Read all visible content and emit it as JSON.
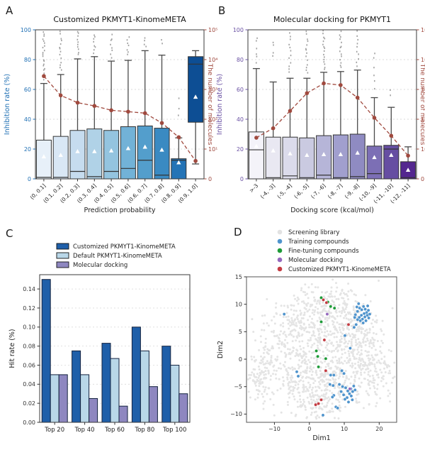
{
  "colors": {
    "background": "#ffffff",
    "count_line": "#a0493e",
    "axis_blue": "#2171b5",
    "axis_purple": "#6a51a3",
    "grid": "#cfcfcf",
    "spine": "#3a3a3a",
    "whisker": "#4a4a4a",
    "outlier_dot": "#8a8a8a",
    "mean_marker": "#ffffff"
  },
  "chart_data": [
    {
      "panel": "A",
      "type": "boxplot-with-count-line",
      "title": "Customized PKMYT1-KinomeMETA",
      "xlabel": "Prediction probability",
      "ylabel_left": "Inhibition rate (%)",
      "ylabel_right": "The number of molecules",
      "left_axis_color": "#2171b5",
      "right_axis_color": "#a0493e",
      "ylim_left": [
        0,
        100
      ],
      "yticks_left": [
        0,
        20,
        40,
        60,
        80,
        100
      ],
      "yticks_right_labels": [
        "0",
        "10¹",
        "10²",
        "10³",
        "10⁴",
        "10⁵"
      ],
      "categories": [
        "(0, 0.1]",
        "(0.1, 0.2]",
        "(0.2, 0.3]",
        "(0.3, 0.4]",
        "(0.4, 0.5]",
        "(0.5, 0.6]",
        "(0.6, 0.7]",
        "(0.7, 0.8]",
        "(0.8, 0.9]",
        "(0.9, 1.0]"
      ],
      "bin_fills": [
        "#e7f0f9",
        "#d9e7f5",
        "#c6dcef",
        "#b0d2e7",
        "#94c4df",
        "#72b2d7",
        "#539ecc",
        "#3a8ac2",
        "#2474b6",
        "#0d4e94"
      ],
      "boxes": [
        {
          "q1": 0,
          "q3": 26,
          "median": 1,
          "mean": 15,
          "whisker_hi": 64,
          "whisker_lo": 0,
          "outliers": {
            "min": 66,
            "max": 100,
            "n": 22
          }
        },
        {
          "q1": 0,
          "q3": 28.5,
          "median": 1,
          "mean": 16,
          "whisker_hi": 70,
          "whisker_lo": 0,
          "outliers": {
            "min": 72,
            "max": 100,
            "n": 14
          }
        },
        {
          "q1": 0,
          "q3": 32.5,
          "median": 5,
          "mean": 18.5,
          "whisker_hi": 80.5,
          "whisker_lo": 0,
          "outliers": {
            "min": 83,
            "max": 100,
            "n": 10
          }
        },
        {
          "q1": 0,
          "q3": 33.5,
          "median": 1.5,
          "mean": 18.5,
          "whisker_hi": 82,
          "whisker_lo": 0,
          "outliers": {
            "min": 84,
            "max": 98,
            "n": 8
          }
        },
        {
          "q1": 0,
          "q3": 32.5,
          "median": 5,
          "mean": 19,
          "whisker_hi": 79,
          "whisker_lo": 0,
          "outliers": {
            "min": 81,
            "max": 98,
            "n": 8
          }
        },
        {
          "q1": 0,
          "q3": 35,
          "median": 7,
          "mean": 20.5,
          "whisker_hi": 79.5,
          "whisker_lo": 0,
          "outliers": {
            "min": 82,
            "max": 97,
            "n": 7
          }
        },
        {
          "q1": 0,
          "q3": 35.5,
          "median": 12.5,
          "mean": 21.5,
          "whisker_hi": 86,
          "whisker_lo": 0,
          "outliers": {
            "min": 88,
            "max": 96,
            "n": 4
          }
        },
        {
          "q1": 0,
          "q3": 34,
          "median": 2.5,
          "mean": 19.5,
          "whisker_hi": 83,
          "whisker_lo": 0,
          "outliers": {
            "min": 90,
            "max": 95,
            "n": 2
          }
        },
        {
          "q1": 0,
          "q3": 13.5,
          "median": 12.5,
          "mean": 11,
          "whisker_hi": 27.5,
          "whisker_lo": 0,
          "outliers": {
            "min": 37,
            "max": 57,
            "n": 3
          }
        },
        {
          "q1": 38,
          "q3": 82,
          "median": 77,
          "mean": 55,
          "whisker_hi": 86,
          "whisker_lo": 10,
          "outliers": {
            "min": 0,
            "max": 0,
            "n": 0
          }
        }
      ],
      "molecule_counts": [
        2800,
        630,
        360,
        280,
        200,
        180,
        160,
        75,
        25,
        4
      ]
    },
    {
      "panel": "B",
      "type": "boxplot-with-count-line",
      "title": "Molecular docking for PKMYT1",
      "xlabel": "Docking score (kcal/mol)",
      "ylabel_left": "Inhibition rate (%)",
      "ylabel_right": "The number of molecules",
      "left_axis_color": "#6a51a3",
      "right_axis_color": "#a0493e",
      "ylim_left": [
        0,
        100
      ],
      "yticks_left": [
        0,
        20,
        40,
        60,
        80,
        100
      ],
      "yticks_right_labels": [
        "0",
        "10¹",
        "10²",
        "10³",
        "10⁴",
        "10⁵"
      ],
      "categories": [
        ">-3",
        "(-4, -3]",
        "(-5, -4]",
        "(-6, -5]",
        "(-7, -6]",
        "(-8, -7]",
        "(-9, -8]",
        "(-10, -9]",
        "(-11, -10]",
        "(-12, -11]"
      ],
      "bin_fills": [
        "#f4f3f9",
        "#e9e8f2",
        "#dbdbeb",
        "#cacae1",
        "#b6b5d8",
        "#a19fce",
        "#8f8bc2",
        "#7c6fb5",
        "#664ea2",
        "#54278f"
      ],
      "boxes": [
        {
          "q1": 0,
          "q3": 31.5,
          "median": 19.5,
          "mean": 22,
          "whisker_hi": 74,
          "whisker_lo": 0,
          "outliers": {
            "min": 76,
            "max": 97,
            "n": 6
          }
        },
        {
          "q1": 0,
          "q3": 28,
          "median": 0.8,
          "mean": 19,
          "whisker_hi": 65,
          "whisker_lo": 0,
          "outliers": {
            "min": 80,
            "max": 95,
            "n": 4
          }
        },
        {
          "q1": 0,
          "q3": 28,
          "median": 2,
          "mean": 17,
          "whisker_hi": 67.5,
          "whisker_lo": 0,
          "outliers": {
            "min": 70,
            "max": 100,
            "n": 12
          }
        },
        {
          "q1": 0,
          "q3": 27.5,
          "median": 0.8,
          "mean": 16,
          "whisker_hi": 67.5,
          "whisker_lo": 0,
          "outliers": {
            "min": 70,
            "max": 100,
            "n": 14
          }
        },
        {
          "q1": 0,
          "q3": 29,
          "median": 2.5,
          "mean": 16.5,
          "whisker_hi": 71.5,
          "whisker_lo": 0,
          "outliers": {
            "min": 73,
            "max": 100,
            "n": 16
          }
        },
        {
          "q1": 0,
          "q3": 29.5,
          "median": 0.8,
          "mean": 16.5,
          "whisker_hi": 72,
          "whisker_lo": 0,
          "outliers": {
            "min": 74,
            "max": 100,
            "n": 14
          }
        },
        {
          "q1": 0,
          "q3": 30,
          "median": 1.5,
          "mean": 17.5,
          "whisker_hi": 73,
          "whisker_lo": 0,
          "outliers": {
            "min": 75,
            "max": 100,
            "n": 10
          }
        },
        {
          "q1": 0,
          "q3": 22,
          "median": 3.5,
          "mean": 14.5,
          "whisker_hi": 54.5,
          "whisker_lo": 0,
          "outliers": {
            "min": 58,
            "max": 88,
            "n": 6
          }
        },
        {
          "q1": 0,
          "q3": 22.5,
          "median": 20,
          "mean": 16,
          "whisker_hi": 48,
          "whisker_lo": 0,
          "outliers": {
            "min": 55,
            "max": 62,
            "n": 2
          }
        },
        {
          "q1": 0,
          "q3": 11.5,
          "median": 0.8,
          "mean": 6,
          "whisker_hi": 21.5,
          "whisker_lo": 0,
          "outliers": {
            "min": 0,
            "max": 0,
            "n": 0
          }
        }
      ],
      "molecule_counts": [
        24,
        50,
        190,
        750,
        1600,
        1400,
        530,
        112,
        28,
        6
      ]
    },
    {
      "panel": "C",
      "type": "bar",
      "ylabel": "Hit rate (%)",
      "categories": [
        "Top 20",
        "Top 40",
        "Top 60",
        "Top 80",
        "Top 100"
      ],
      "ylim": [
        0,
        0.155
      ],
      "yticks": [
        0.0,
        0.02,
        0.04,
        0.06,
        0.08,
        0.1,
        0.12,
        0.14
      ],
      "series": [
        {
          "name": "Customized PKMYT1-KinomeMETA",
          "color": "#1f5fa9",
          "values": [
            0.15,
            0.075,
            0.083,
            0.1,
            0.08
          ]
        },
        {
          "name": "Default PKMYT1-KinomeMETA",
          "color": "#b9d7e8",
          "values": [
            0.05,
            0.05,
            0.067,
            0.075,
            0.06
          ]
        },
        {
          "name": "Molecular docking",
          "color": "#8e87c0",
          "values": [
            0.05,
            0.025,
            0.017,
            0.0375,
            0.03
          ]
        }
      ],
      "bar_edge_color": "#15233f"
    },
    {
      "panel": "D",
      "type": "scatter",
      "xlabel": "Dim1",
      "ylabel": "Dim2",
      "xlim": [
        -18,
        25
      ],
      "ylim": [
        -11.5,
        15
      ],
      "xticks": [
        -10,
        0,
        10,
        20
      ],
      "yticks": [
        -10,
        -5,
        0,
        5,
        10,
        15
      ],
      "legend": [
        {
          "name": "Screening library",
          "color": "#e2e2e2"
        },
        {
          "name": "Training compounds",
          "color": "#4f94cd"
        },
        {
          "name": "Fine-tuning compounds",
          "color": "#1e9b38"
        },
        {
          "name": "Molecular docking",
          "color": "#9467bd"
        },
        {
          "name": "Customized PKMYT1-KinomeMETA",
          "color": "#c33b42"
        }
      ],
      "background_cloud": {
        "color": "#e4e4e4",
        "seed": 11,
        "clusters": [
          {
            "cx": 3.5,
            "cy": 3,
            "sx": 7,
            "sy": 4.5,
            "n": 430
          },
          {
            "cx": 2,
            "cy": 9.5,
            "sx": 4.5,
            "sy": 2.2,
            "n": 120
          },
          {
            "cx": 5,
            "cy": -4,
            "sx": 6,
            "sy": 3,
            "n": 230
          },
          {
            "cx": -12.5,
            "cy": -1.5,
            "sx": 2.8,
            "sy": 3.2,
            "n": 130
          },
          {
            "cx": 17,
            "cy": 0,
            "sx": 3.2,
            "sy": 3.5,
            "n": 140
          },
          {
            "cx": 13,
            "cy": 3.5,
            "sx": 3,
            "sy": 2.5,
            "n": 80
          },
          {
            "cx": 3,
            "cy": -8.5,
            "sx": 3.5,
            "sy": 1.5,
            "n": 65
          },
          {
            "cx": -6,
            "cy": 6,
            "sx": 3,
            "sy": 2.5,
            "n": 75
          },
          {
            "cx": 20.5,
            "cy": -2.5,
            "sx": 1.8,
            "sy": 2,
            "n": 40
          },
          {
            "cx": -14,
            "cy": -4.5,
            "sx": 1.5,
            "sy": 1.2,
            "n": 25
          },
          {
            "cx": 9,
            "cy": 10,
            "sx": 3,
            "sy": 1.8,
            "n": 55
          },
          {
            "cx": -2,
            "cy": -6,
            "sx": 3,
            "sy": 2,
            "n": 55
          }
        ]
      },
      "points": {
        "training": {
          "color": "#4f94cd",
          "xy": [
            [
              13.2,
              8.1
            ],
            [
              13.8,
              8.7
            ],
            [
              14.4,
              9.3
            ],
            [
              15.0,
              9.0
            ],
            [
              15.5,
              9.6
            ],
            [
              16.0,
              9.1
            ],
            [
              16.4,
              8.5
            ],
            [
              15.7,
              8.3
            ],
            [
              14.9,
              8.0
            ],
            [
              14.3,
              7.6
            ],
            [
              15.2,
              7.3
            ],
            [
              15.9,
              7.7
            ],
            [
              16.6,
              8.0
            ],
            [
              16.2,
              7.0
            ],
            [
              15.4,
              6.6
            ],
            [
              14.6,
              7.0
            ],
            [
              13.8,
              7.2
            ],
            [
              16.9,
              8.9
            ],
            [
              17.3,
              8.2
            ],
            [
              13.6,
              9.5
            ],
            [
              14.1,
              10.1
            ],
            [
              16.7,
              9.7
            ],
            [
              17.0,
              7.5
            ],
            [
              13.0,
              7.6
            ],
            [
              -7.2,
              8.2
            ],
            [
              -3.6,
              -2.3
            ],
            [
              -3.2,
              -3.1
            ],
            [
              10.2,
              4.3
            ],
            [
              11.7,
              2.0
            ],
            [
              12.8,
              5.8
            ],
            [
              13.4,
              6.3
            ],
            [
              7.0,
              -2.9
            ],
            [
              9.3,
              -2.1
            ],
            [
              9.9,
              -2.6
            ],
            [
              6.1,
              -2.9
            ],
            [
              6.8,
              -4.8
            ],
            [
              5.9,
              -4.6
            ],
            [
              7.0,
              -6.6
            ],
            [
              6.6,
              -6.9
            ],
            [
              7.6,
              -8.7
            ],
            [
              8.1,
              -8.9
            ],
            [
              3.9,
              -10.2
            ],
            [
              8.6,
              -4.6
            ],
            [
              9.5,
              -5.0
            ],
            [
              10.4,
              -5.2
            ],
            [
              11.0,
              -5.8
            ],
            [
              11.5,
              -6.3
            ],
            [
              12.0,
              -6.7
            ],
            [
              12.4,
              -5.9
            ],
            [
              10.8,
              -7.0
            ],
            [
              9.8,
              -6.5
            ],
            [
              10.2,
              -7.3
            ],
            [
              11.9,
              -5.4
            ],
            [
              12.7,
              -4.9
            ],
            [
              12.3,
              -7.4
            ],
            [
              11.2,
              -7.8
            ],
            [
              13.1,
              -5.6
            ],
            [
              9.1,
              -5.9
            ]
          ]
        },
        "finetuning": {
          "color": "#1e9b38",
          "xy": [
            [
              3.4,
              11.2
            ],
            [
              5.3,
              10.4
            ],
            [
              6.1,
              9.6
            ],
            [
              7.2,
              9.3
            ],
            [
              3.4,
              6.8
            ],
            [
              2.0,
              1.5
            ],
            [
              2.4,
              0.5
            ],
            [
              4.7,
              0.1
            ],
            [
              2.6,
              -1.4
            ]
          ]
        },
        "docking": {
          "color": "#9467bd",
          "xy": [
            [
              5.1,
              8.2
            ],
            [
              11.6,
              -5.4
            ]
          ]
        },
        "customized": {
          "color": "#c33b42",
          "xy": [
            [
              4.0,
              10.8
            ],
            [
              4.9,
              10.3
            ],
            [
              11.2,
              6.3
            ],
            [
              4.3,
              3.5
            ],
            [
              4.7,
              -2.1
            ],
            [
              3.4,
              -7.4
            ],
            [
              2.6,
              -8.1
            ],
            [
              1.8,
              -8.3
            ]
          ]
        }
      }
    }
  ]
}
